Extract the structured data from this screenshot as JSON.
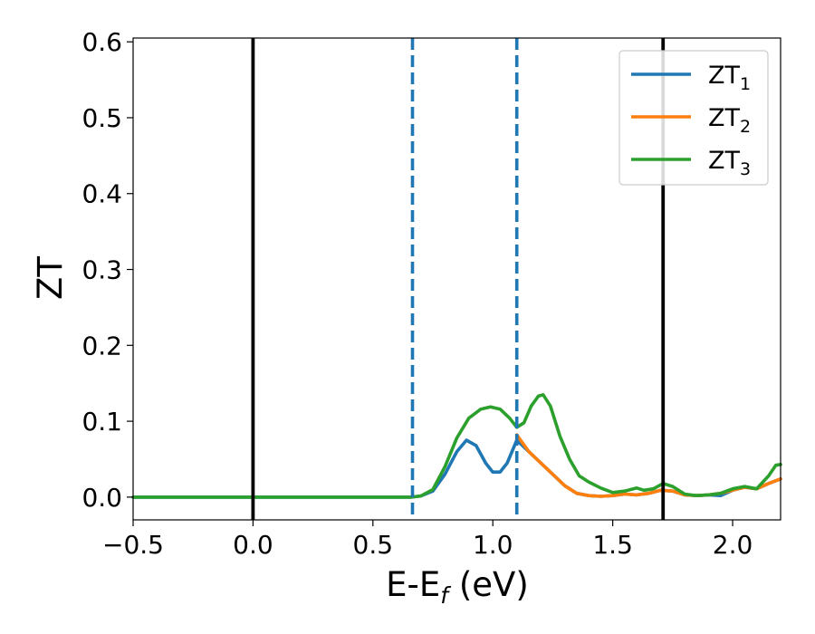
{
  "chart_data": {
    "type": "line",
    "xlabel_main": "E-E",
    "xlabel_sub": "f",
    "xlabel_unit": " (eV)",
    "ylabel": "ZT",
    "xlim": [
      -0.5,
      2.2
    ],
    "ylim": [
      -0.03,
      0.605
    ],
    "x_ticks": [
      -0.5,
      0.0,
      0.5,
      1.0,
      1.5,
      2.0
    ],
    "x_tick_labels": [
      "−0.5",
      "0.0",
      "0.5",
      "1.0",
      "1.5",
      "2.0"
    ],
    "y_ticks": [
      0.0,
      0.1,
      0.2,
      0.3,
      0.4,
      0.5,
      0.6
    ],
    "y_tick_labels": [
      "0.0",
      "0.1",
      "0.2",
      "0.3",
      "0.4",
      "0.5",
      "0.6"
    ],
    "grid": false,
    "legend_position": "top-right",
    "vlines": [
      {
        "x": 0.0,
        "style": "solid",
        "color": "#000000"
      },
      {
        "x": 1.71,
        "style": "solid",
        "color": "#000000"
      },
      {
        "x": 0.665,
        "style": "dashed",
        "color": "#1f77b4"
      },
      {
        "x": 1.1,
        "style": "dashed",
        "color": "#1f77b4"
      }
    ],
    "series": [
      {
        "legend_main": "ZT",
        "legend_sub": "1",
        "color": "#1f77b4",
        "points": [
          [
            -0.5,
            0.0
          ],
          [
            0.66,
            0.0
          ],
          [
            0.7,
            0.0015
          ],
          [
            0.75,
            0.008
          ],
          [
            0.8,
            0.03
          ],
          [
            0.85,
            0.06
          ],
          [
            0.89,
            0.075
          ],
          [
            0.93,
            0.068
          ],
          [
            0.97,
            0.045
          ],
          [
            1.0,
            0.033
          ],
          [
            1.03,
            0.033
          ],
          [
            1.06,
            0.045
          ],
          [
            1.1,
            0.075
          ],
          [
            1.15,
            0.06
          ],
          [
            1.2,
            0.045
          ],
          [
            1.25,
            0.03
          ],
          [
            1.3,
            0.015
          ],
          [
            1.35,
            0.005
          ],
          [
            1.4,
            0.002
          ],
          [
            1.45,
            0.001
          ],
          [
            1.5,
            0.002
          ],
          [
            1.55,
            0.004
          ],
          [
            1.6,
            0.003
          ],
          [
            1.65,
            0.005
          ],
          [
            1.7,
            0.009
          ],
          [
            1.75,
            0.008
          ],
          [
            1.8,
            0.003
          ],
          [
            1.85,
            0.002
          ],
          [
            1.9,
            0.003
          ],
          [
            1.95,
            0.002
          ],
          [
            2.0,
            0.009
          ],
          [
            2.05,
            0.013
          ],
          [
            2.1,
            0.011
          ],
          [
            2.15,
            0.018
          ],
          [
            2.2,
            0.024
          ]
        ]
      },
      {
        "legend_main": "ZT",
        "legend_sub": "2",
        "color": "#ff7f0e",
        "points": [
          [
            1.1,
            0.082
          ],
          [
            1.15,
            0.06
          ],
          [
            1.2,
            0.045
          ],
          [
            1.25,
            0.03
          ],
          [
            1.3,
            0.015
          ],
          [
            1.35,
            0.005
          ],
          [
            1.4,
            0.002
          ],
          [
            1.45,
            0.001
          ],
          [
            1.5,
            0.002
          ],
          [
            1.55,
            0.004
          ],
          [
            1.6,
            0.003
          ],
          [
            1.65,
            0.005
          ],
          [
            1.7,
            0.009
          ],
          [
            1.75,
            0.008
          ],
          [
            1.8,
            0.003
          ],
          [
            1.85,
            0.002
          ],
          [
            1.9,
            0.003
          ],
          [
            1.95,
            0.005
          ],
          [
            2.0,
            0.009
          ],
          [
            2.05,
            0.013
          ],
          [
            2.1,
            0.011
          ],
          [
            2.15,
            0.018
          ],
          [
            2.2,
            0.024
          ]
        ]
      },
      {
        "legend_main": "ZT",
        "legend_sub": "3",
        "color": "#2ca02c",
        "points": [
          [
            -0.5,
            0.0
          ],
          [
            0.66,
            0.0
          ],
          [
            0.7,
            0.0015
          ],
          [
            0.75,
            0.01
          ],
          [
            0.8,
            0.04
          ],
          [
            0.85,
            0.078
          ],
          [
            0.9,
            0.104
          ],
          [
            0.95,
            0.116
          ],
          [
            0.99,
            0.119
          ],
          [
            1.03,
            0.116
          ],
          [
            1.07,
            0.104
          ],
          [
            1.1,
            0.092
          ],
          [
            1.13,
            0.098
          ],
          [
            1.16,
            0.12
          ],
          [
            1.19,
            0.133
          ],
          [
            1.21,
            0.135
          ],
          [
            1.24,
            0.12
          ],
          [
            1.28,
            0.08
          ],
          [
            1.32,
            0.05
          ],
          [
            1.36,
            0.028
          ],
          [
            1.4,
            0.02
          ],
          [
            1.45,
            0.012
          ],
          [
            1.5,
            0.006
          ],
          [
            1.55,
            0.008
          ],
          [
            1.6,
            0.012
          ],
          [
            1.63,
            0.009
          ],
          [
            1.67,
            0.011
          ],
          [
            1.71,
            0.018
          ],
          [
            1.75,
            0.014
          ],
          [
            1.8,
            0.004
          ],
          [
            1.85,
            0.002
          ],
          [
            1.9,
            0.003
          ],
          [
            1.95,
            0.005
          ],
          [
            2.0,
            0.011
          ],
          [
            2.05,
            0.014
          ],
          [
            2.1,
            0.011
          ],
          [
            2.15,
            0.028
          ],
          [
            2.18,
            0.042
          ],
          [
            2.2,
            0.043
          ]
        ]
      }
    ]
  }
}
